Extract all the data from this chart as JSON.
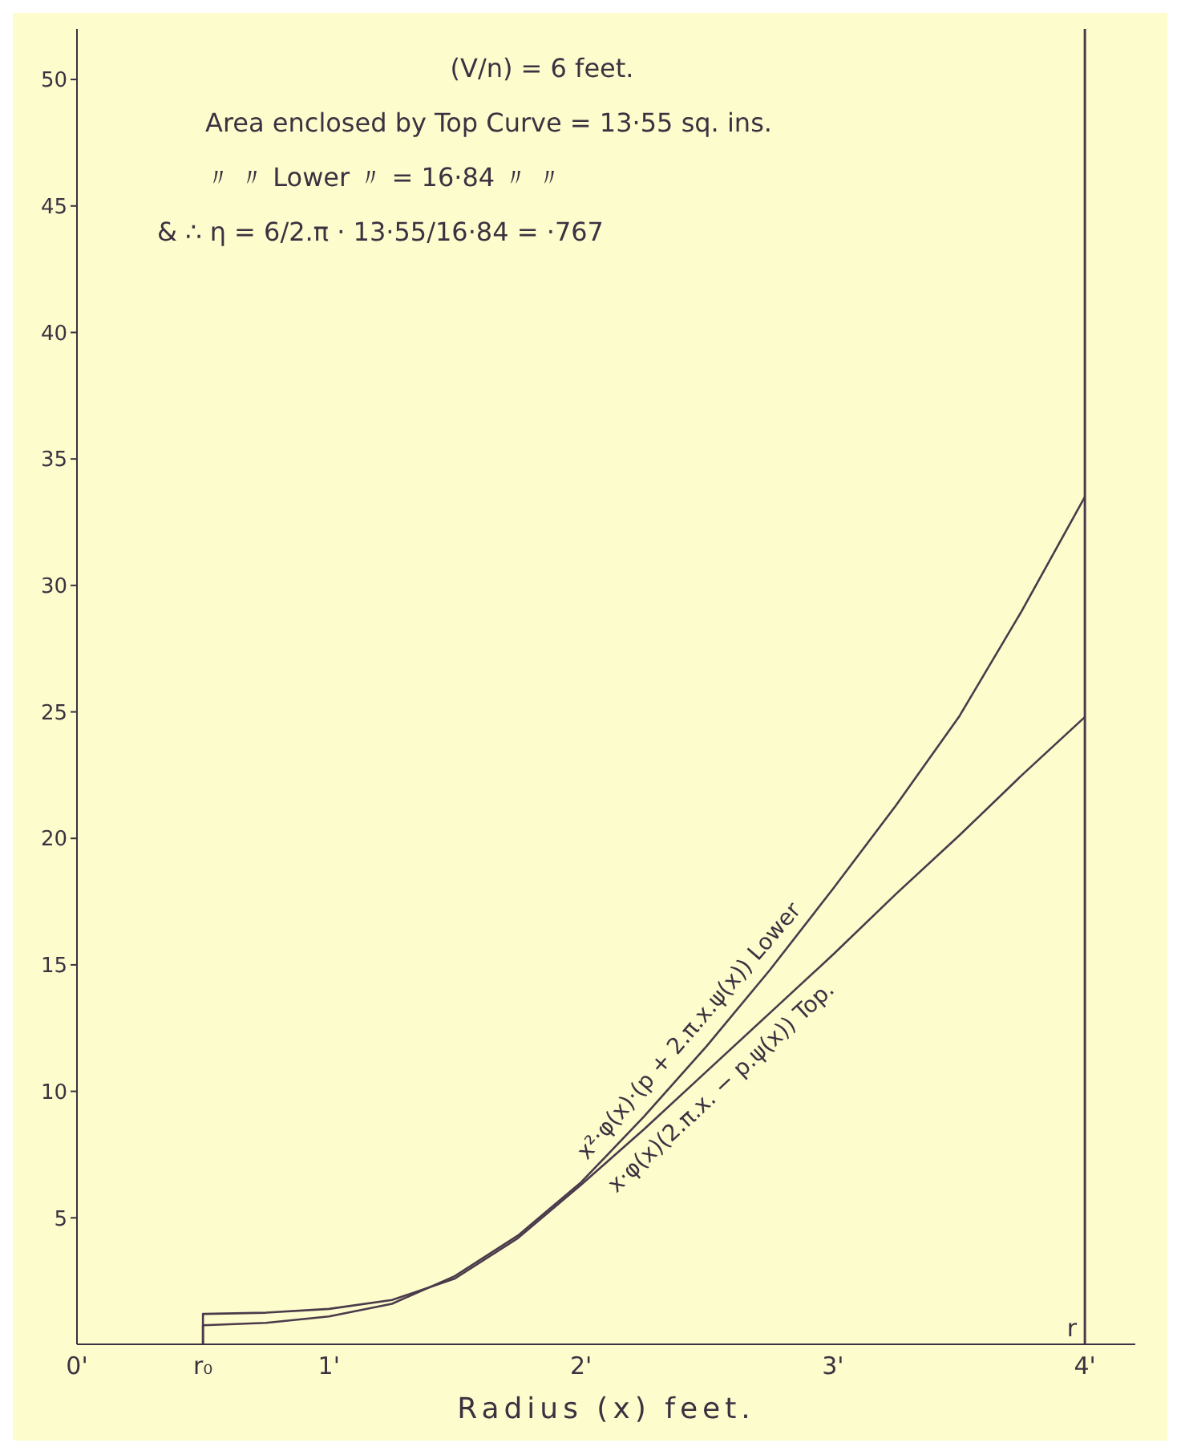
{
  "chart_data": {
    "type": "line",
    "xlabel": "Radius (x) feet.",
    "annotations": [
      "(V/n) = 6 feet.",
      "Area enclosed by Top Curve = 13·55 sq. ins.",
      "〃 〃 Lower 〃 = 16·84 〃 〃",
      "& ∴ η = 6/2.π · 13·55/16·84 = ·767"
    ],
    "series": [
      {
        "name": "x²·φ(x)·(p + 2.π.x.ψ(x)) Lower",
        "color": "#4a3a4a",
        "x": [
          0.5,
          0.5,
          0.75,
          1,
          1.25,
          1.5,
          1.75,
          2,
          2.25,
          2.5,
          2.75,
          3,
          3.25,
          3.5,
          3.75,
          4
        ],
        "values": [
          0,
          0.75,
          0.85,
          1.1,
          1.6,
          2.7,
          4.3,
          6.4,
          9.0,
          11.8,
          14.8,
          18.0,
          21.3,
          24.8,
          29.0,
          33.5
        ]
      },
      {
        "name": "x·φ(x)(2.π.x. − p.ψ(x)) Top.",
        "color": "#4a3a4a",
        "x": [
          0.5,
          0.5,
          0.75,
          1,
          1.25,
          1.5,
          1.75,
          2,
          2.25,
          2.5,
          2.75,
          3,
          3.25,
          3.5,
          3.75,
          4
        ],
        "values": [
          0,
          1.2,
          1.25,
          1.4,
          1.75,
          2.6,
          4.2,
          6.3,
          8.5,
          10.8,
          13.1,
          15.4,
          17.8,
          20.1,
          22.5,
          24.8
        ]
      }
    ],
    "xlim": [
      0,
      4.2
    ],
    "xticks": [
      {
        "value": 0,
        "label": "0'"
      },
      {
        "value": 0.5,
        "label": "r₀"
      },
      {
        "value": 1,
        "label": "1'"
      },
      {
        "value": 2,
        "label": "2'"
      },
      {
        "value": 3,
        "label": "3'"
      },
      {
        "value": 4,
        "label": "4'"
      }
    ],
    "ylim": [
      0,
      52
    ],
    "yticks": [
      5,
      10,
      15,
      20,
      25,
      30,
      35,
      40,
      45,
      50
    ],
    "ref_lines": [
      {
        "axis": "x",
        "value": 4,
        "label": "r",
        "color": "#4a3a4a"
      }
    ],
    "grid": false,
    "legend": false,
    "marker": "none",
    "line_style": "solid"
  }
}
